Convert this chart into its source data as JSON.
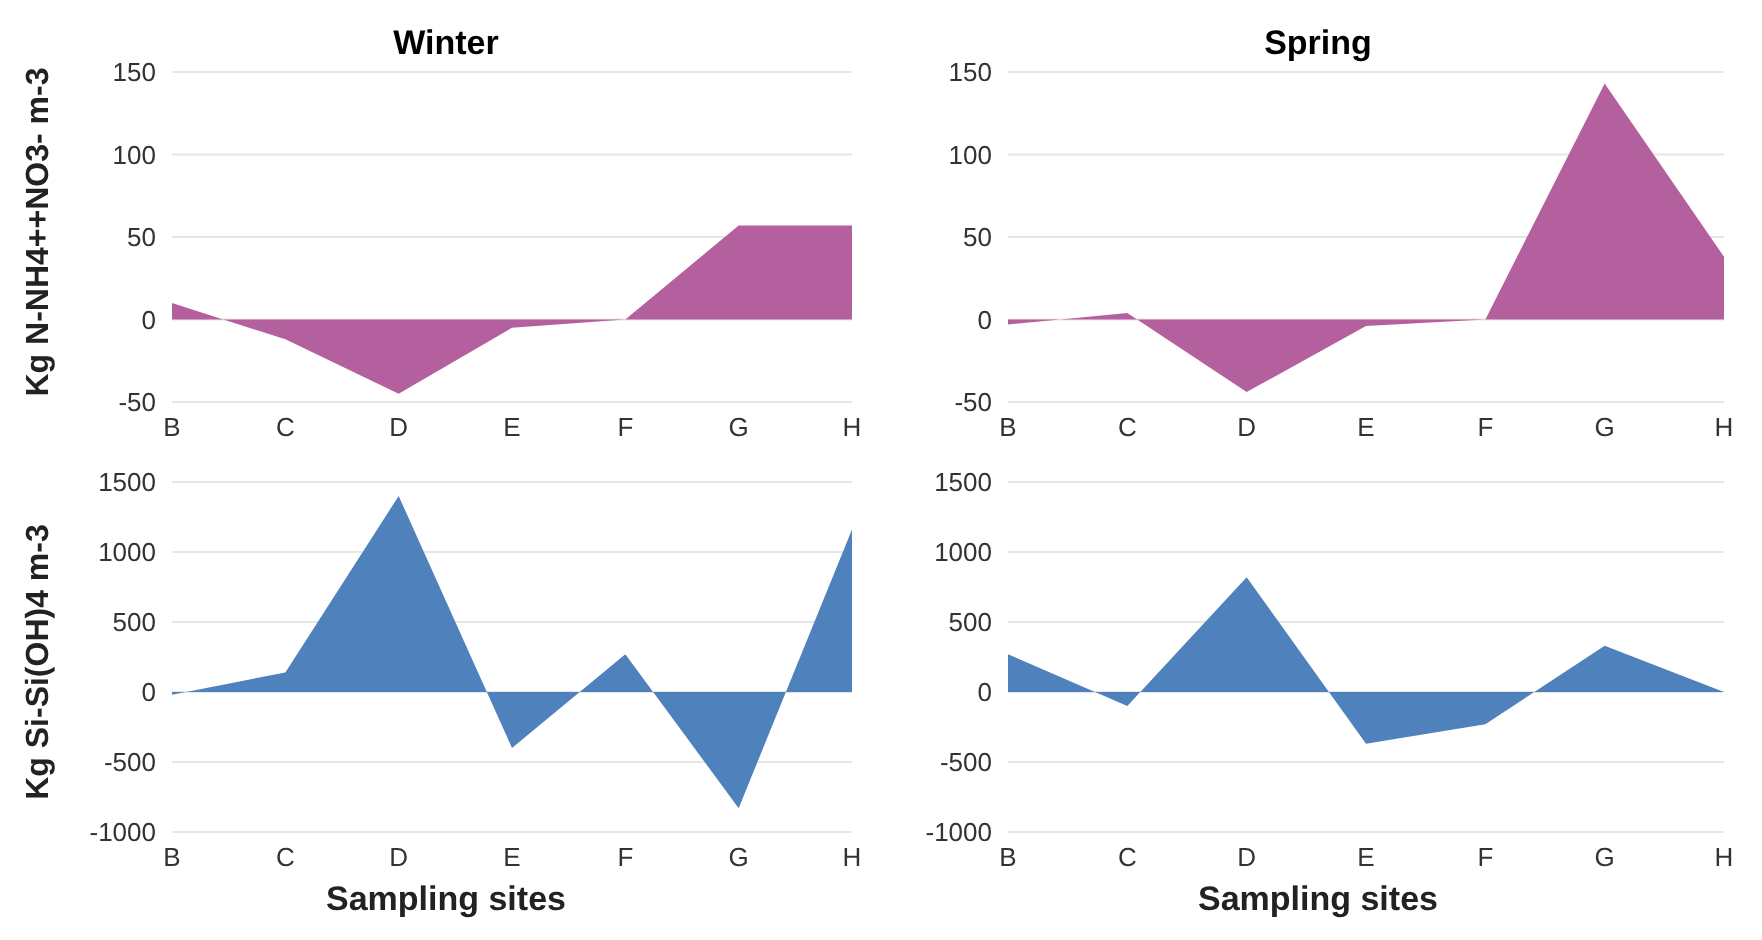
{
  "chart_data": [
    {
      "type": "area",
      "title": "Winter",
      "ylabel": "Kg N-NH4++NO3- m-3",
      "categories": [
        "B",
        "C",
        "D",
        "E",
        "F",
        "G",
        "H"
      ],
      "series": [
        {
          "color": "#b5609e",
          "values": [
            10,
            -12,
            -45,
            -5,
            0,
            57,
            57
          ]
        }
      ],
      "ylim": [
        -50,
        150
      ],
      "yticks": [
        -50,
        0,
        50,
        100,
        150
      ],
      "grid": "y"
    },
    {
      "type": "area",
      "title": "Spring",
      "categories": [
        "B",
        "C",
        "D",
        "E",
        "F",
        "G",
        "H"
      ],
      "series": [
        {
          "color": "#b5609e",
          "values": [
            -3,
            4,
            -44,
            -4,
            0,
            143,
            38
          ]
        }
      ],
      "ylim": [
        -50,
        150
      ],
      "yticks": [
        -50,
        0,
        50,
        100,
        150
      ],
      "grid": "y"
    },
    {
      "type": "area",
      "xlabel": "Sampling sites",
      "ylabel": "Kg Si-Si(OH)4 m-3",
      "categories": [
        "B",
        "C",
        "D",
        "E",
        "F",
        "G",
        "H"
      ],
      "series": [
        {
          "color": "#4f81bd",
          "values": [
            -20,
            140,
            1400,
            -400,
            270,
            -830,
            1160
          ]
        }
      ],
      "ylim": [
        -1000,
        1500
      ],
      "yticks": [
        -1000,
        -500,
        0,
        500,
        1000,
        1500
      ],
      "grid": "y"
    },
    {
      "type": "area",
      "xlabel": "Sampling sites",
      "categories": [
        "B",
        "C",
        "D",
        "E",
        "F",
        "G",
        "H"
      ],
      "series": [
        {
          "color": "#4f81bd",
          "values": [
            270,
            -100,
            820,
            -370,
            -230,
            330,
            0
          ]
        }
      ],
      "ylim": [
        -1000,
        1500
      ],
      "yticks": [
        -1000,
        -500,
        0,
        500,
        1000,
        1500
      ],
      "grid": "y"
    }
  ]
}
